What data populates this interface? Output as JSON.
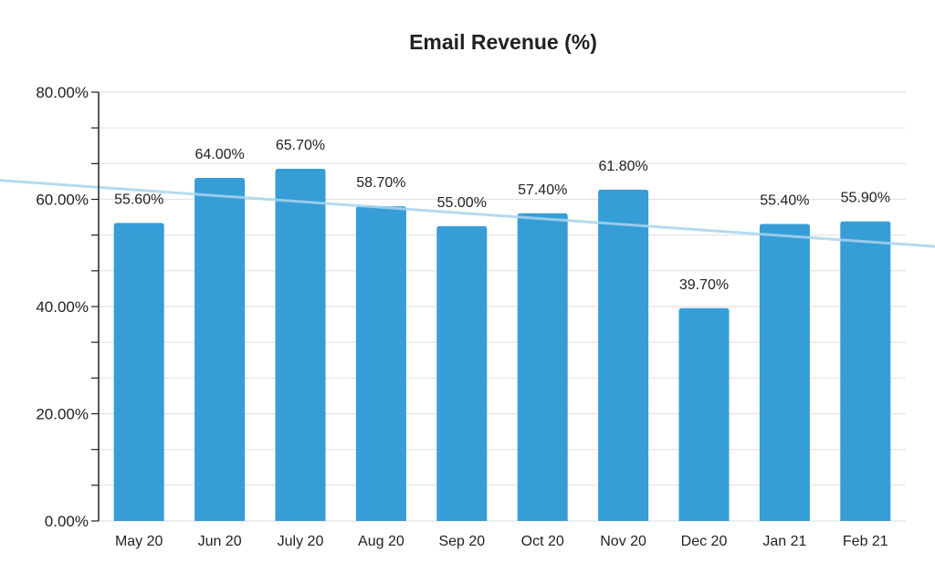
{
  "chart_data": {
    "type": "bar",
    "title": "Email Revenue (%)",
    "xlabel": "",
    "ylabel": "",
    "categories": [
      "May 20",
      "Jun 20",
      "July 20",
      "Aug 20",
      "Sep 20",
      "Oct 20",
      "Nov 20",
      "Dec 20",
      "Jan 21",
      "Feb 21"
    ],
    "values": [
      55.6,
      64.0,
      65.7,
      58.7,
      55.0,
      57.4,
      61.8,
      39.7,
      55.4,
      55.9
    ],
    "data_labels": [
      "55.60%",
      "64.00%",
      "65.70%",
      "58.70%",
      "55.00%",
      "57.40%",
      "61.80%",
      "39.70%",
      "55.40%",
      "55.90%"
    ],
    "ylim": [
      0,
      80
    ],
    "y_ticks": [
      0,
      20,
      40,
      60,
      80
    ],
    "y_tick_labels": [
      "0.00%",
      "20.00%",
      "40.00%",
      "60.00%",
      "80.00%"
    ],
    "minor_gridlines_per_major": 3,
    "grid": true,
    "trendline": "linear",
    "colors": {
      "bar": "#369dd6",
      "trendline": "#a8d4ef",
      "grid": "#e2e2e2",
      "axis": "#222222"
    }
  }
}
